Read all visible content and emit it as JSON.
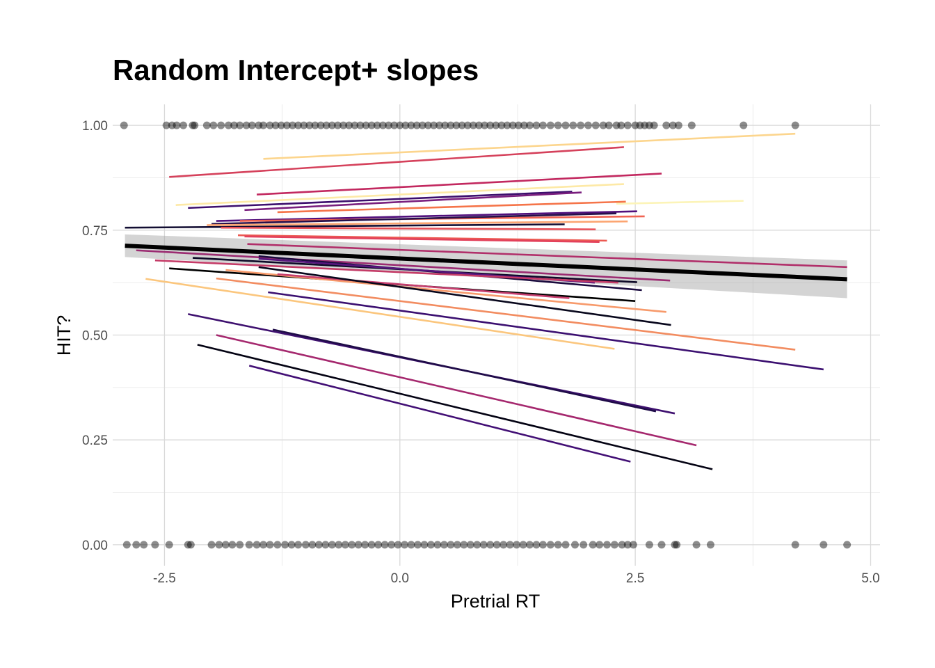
{
  "chart_data": {
    "type": "line",
    "title": "Random Intercept+ slopes",
    "xlabel": "Pretrial RT",
    "ylabel": "HIT?",
    "xlim": [
      -3.05,
      5.1
    ],
    "ylim": [
      -0.05,
      1.05
    ],
    "x_ticks": [
      {
        "value": -2.5,
        "label": "-2.5"
      },
      {
        "value": 0.0,
        "label": "0.0"
      },
      {
        "value": 2.5,
        "label": "2.5"
      },
      {
        "value": 5.0,
        "label": "5.0"
      }
    ],
    "y_ticks": [
      {
        "value": 0.0,
        "label": "0.00"
      },
      {
        "value": 0.25,
        "label": "0.25"
      },
      {
        "value": 0.5,
        "label": "0.50"
      },
      {
        "value": 0.75,
        "label": "0.75"
      },
      {
        "value": 1.0,
        "label": "1.00"
      }
    ],
    "grid": true,
    "legend": "none",
    "points": {
      "color": "#000000",
      "opacity": 0.45,
      "hit_x": [
        -2.93,
        -2.48,
        -2.42,
        -2.37,
        -2.3,
        -2.2,
        -2.18,
        -2.05,
        -1.98,
        -1.9,
        -1.82,
        -1.76,
        -1.7,
        -1.63,
        -1.57,
        -1.5,
        -1.45,
        -1.38,
        -1.32,
        -1.26,
        -1.2,
        -1.14,
        -1.08,
        -1.02,
        -0.96,
        -0.9,
        -0.84,
        -0.78,
        -0.72,
        -0.66,
        -0.6,
        -0.54,
        -0.48,
        -0.42,
        -0.36,
        -0.3,
        -0.24,
        -0.18,
        -0.12,
        -0.06,
        0.0,
        0.06,
        0.12,
        0.18,
        0.24,
        0.3,
        0.36,
        0.42,
        0.48,
        0.54,
        0.6,
        0.66,
        0.72,
        0.78,
        0.84,
        0.9,
        0.96,
        1.02,
        1.08,
        1.14,
        1.2,
        1.26,
        1.32,
        1.38,
        1.45,
        1.52,
        1.6,
        1.68,
        1.76,
        1.84,
        1.92,
        2.0,
        2.08,
        2.16,
        2.22,
        2.3,
        2.35,
        2.42,
        2.5,
        2.55,
        2.6,
        2.65,
        2.7,
        2.83,
        2.9,
        2.96,
        3.1,
        3.65,
        4.2
      ],
      "miss_x": [
        -2.9,
        -2.8,
        -2.72,
        -2.6,
        -2.45,
        -2.25,
        -2.22,
        -2.0,
        -1.92,
        -1.85,
        -1.78,
        -1.7,
        -1.6,
        -1.52,
        -1.45,
        -1.38,
        -1.3,
        -1.22,
        -1.15,
        -1.08,
        -1.0,
        -0.93,
        -0.86,
        -0.79,
        -0.72,
        -0.65,
        -0.58,
        -0.51,
        -0.44,
        -0.37,
        -0.3,
        -0.23,
        -0.16,
        -0.09,
        -0.02,
        0.05,
        0.12,
        0.19,
        0.26,
        0.33,
        0.4,
        0.47,
        0.54,
        0.61,
        0.68,
        0.75,
        0.82,
        0.89,
        0.96,
        1.03,
        1.1,
        1.17,
        1.24,
        1.31,
        1.38,
        1.45,
        1.52,
        1.6,
        1.68,
        1.76,
        1.86,
        1.95,
        2.05,
        2.12,
        2.2,
        2.28,
        2.36,
        2.42,
        2.48,
        2.65,
        2.78,
        2.92,
        2.94,
        3.15,
        3.3,
        4.2,
        4.5,
        4.75
      ]
    },
    "fixed_effect": {
      "color": "#000000",
      "x": [
        -2.92,
        4.75
      ],
      "y": [
        0.713,
        0.633
      ],
      "ci_lower": [
        0.686,
        0.588
      ],
      "ci_upper": [
        0.74,
        0.678
      ]
    },
    "series": [
      {
        "color": "#fcd58d",
        "x": [
          -1.45,
          4.2
        ],
        "y": [
          0.92,
          0.98
        ]
      },
      {
        "color": "#d5415b",
        "x": [
          -2.45,
          2.38
        ],
        "y": [
          0.877,
          0.948
        ]
      },
      {
        "color": "#c2285f",
        "x": [
          -1.52,
          2.78
        ],
        "y": [
          0.835,
          0.885
        ]
      },
      {
        "color": "#fde9a6",
        "x": [
          -2.38,
          2.38
        ],
        "y": [
          0.81,
          0.86
        ]
      },
      {
        "color": "#3d0f6d",
        "x": [
          -2.25,
          1.83
        ],
        "y": [
          0.803,
          0.842
        ]
      },
      {
        "color": "#7a1f7e",
        "x": [
          -1.65,
          1.93
        ],
        "y": [
          0.798,
          0.84
        ]
      },
      {
        "color": "#fcf4b8",
        "x": [
          2.3,
          3.65
        ],
        "y": [
          0.813,
          0.82
        ]
      },
      {
        "color": "#f57449",
        "x": [
          -1.3,
          2.4
        ],
        "y": [
          0.793,
          0.818
        ]
      },
      {
        "color": "#500f7c",
        "x": [
          -1.95,
          2.52
        ],
        "y": [
          0.772,
          0.795
        ]
      },
      {
        "color": "#f06452",
        "x": [
          -1.7,
          2.6
        ],
        "y": [
          0.772,
          0.783
        ]
      },
      {
        "color": "#26104a",
        "x": [
          -2.0,
          2.3
        ],
        "y": [
          0.765,
          0.79
        ]
      },
      {
        "color": "#fca571",
        "x": [
          -2.05,
          2.42
        ],
        "y": [
          0.762,
          0.771
        ]
      },
      {
        "color": "#120d32",
        "x": [
          -2.92,
          1.75
        ],
        "y": [
          0.756,
          0.764
        ]
      },
      {
        "color": "#e94f58",
        "x": [
          -1.9,
          2.08
        ],
        "y": [
          0.756,
          0.752
        ]
      },
      {
        "color": "#ec5a52",
        "x": [
          -1.72,
          2.2
        ],
        "y": [
          0.738,
          0.725
        ]
      },
      {
        "color": "#e3415b",
        "x": [
          -1.65,
          2.12
        ],
        "y": [
          0.735,
          0.722
        ]
      },
      {
        "color": "#b12f6a",
        "x": [
          -1.62,
          4.75
        ],
        "y": [
          0.717,
          0.662
        ]
      },
      {
        "color": "#9b2b71",
        "x": [
          -2.8,
          2.87
        ],
        "y": [
          0.702,
          0.63
        ]
      },
      {
        "color": "#0e0a28",
        "x": [
          -2.2,
          2.52
        ],
        "y": [
          0.684,
          0.626
        ]
      },
      {
        "color": "#1a0b3e",
        "x": [
          -1.5,
          2.57
        ],
        "y": [
          0.688,
          0.607
        ]
      },
      {
        "color": "#58167e",
        "x": [
          -1.5,
          2.07
        ],
        "y": [
          0.682,
          0.625
        ]
      },
      {
        "color": "#c43b67",
        "x": [
          -2.6,
          2.32
        ],
        "y": [
          0.678,
          0.625
        ]
      },
      {
        "color": "#000000",
        "x": [
          -2.45,
          2.5
        ],
        "y": [
          0.659,
          0.581
        ]
      },
      {
        "color": "#f79a6b",
        "x": [
          -1.85,
          2.83
        ],
        "y": [
          0.655,
          0.555
        ]
      },
      {
        "color": "#c63e6e",
        "x": [
          -1.3,
          1.8
        ],
        "y": [
          0.645,
          0.588
        ]
      },
      {
        "color": "#08071c",
        "x": [
          -1.5,
          2.88
        ],
        "y": [
          0.662,
          0.524
        ]
      },
      {
        "color": "#f28c60",
        "x": [
          -1.95,
          4.2
        ],
        "y": [
          0.635,
          0.465
        ]
      },
      {
        "color": "#fbc67d",
        "x": [
          -2.7,
          2.28
        ],
        "y": [
          0.634,
          0.467
        ]
      },
      {
        "color": "#3b0f70",
        "x": [
          -1.4,
          4.5
        ],
        "y": [
          0.602,
          0.418
        ]
      },
      {
        "color": "#3e106f",
        "x": [
          -2.25,
          2.92
        ],
        "y": [
          0.55,
          0.313
        ]
      },
      {
        "color": "#1f0c48",
        "x": [
          -1.35,
          2.72
        ],
        "y": [
          0.513,
          0.318
        ]
      },
      {
        "color": "#a5286e",
        "x": [
          -1.95,
          3.15
        ],
        "y": [
          0.5,
          0.237
        ]
      },
      {
        "color": "#030212",
        "x": [
          -2.15,
          3.32
        ],
        "y": [
          0.477,
          0.18
        ]
      },
      {
        "color": "#420f75",
        "x": [
          -1.6,
          2.45
        ],
        "y": [
          0.427,
          0.198
        ]
      }
    ]
  }
}
